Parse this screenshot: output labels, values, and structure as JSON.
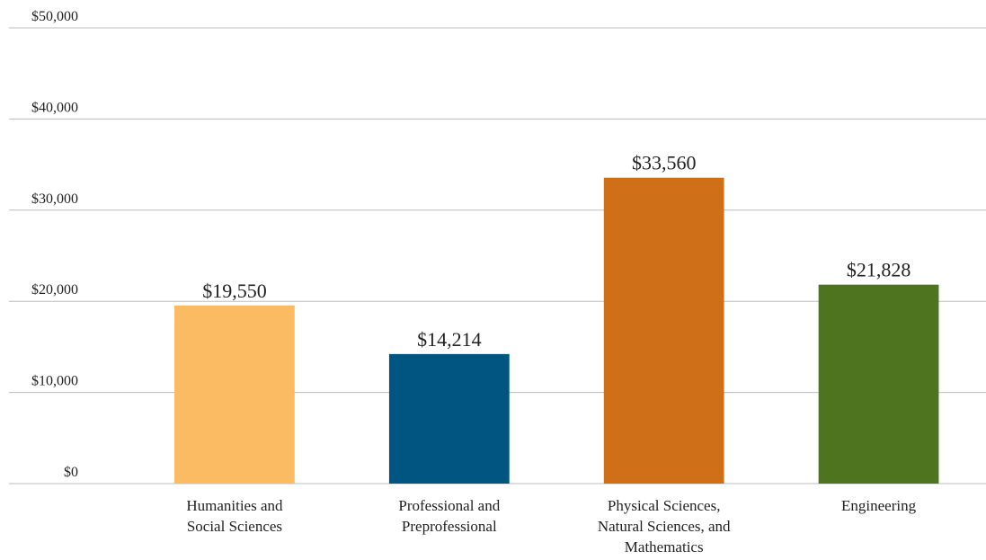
{
  "chart_data": {
    "type": "bar",
    "categories": [
      "Humanities and Social Sciences",
      "Professional and Preprofessional",
      "Physical Sciences, Natural Sciences, and Mathematics",
      "Engineering"
    ],
    "values": [
      19550,
      14214,
      33560,
      21828
    ],
    "value_labels": [
      "$19,550",
      "$14,214",
      "$33,560",
      "$21,828"
    ],
    "colors": [
      "#fbbb62",
      "#005581",
      "#cf7019",
      "#4e741f"
    ],
    "ylim": [
      0,
      50000
    ],
    "yticks": [
      {
        "value": 0,
        "label": "$0"
      },
      {
        "value": 10000,
        "label": "$10,000"
      },
      {
        "value": 20000,
        "label": "$20,000"
      },
      {
        "value": 30000,
        "label": "$30,000"
      },
      {
        "value": 40000,
        "label": "$40,000"
      },
      {
        "value": 50000,
        "label": "$50,000"
      }
    ],
    "grid": true
  }
}
